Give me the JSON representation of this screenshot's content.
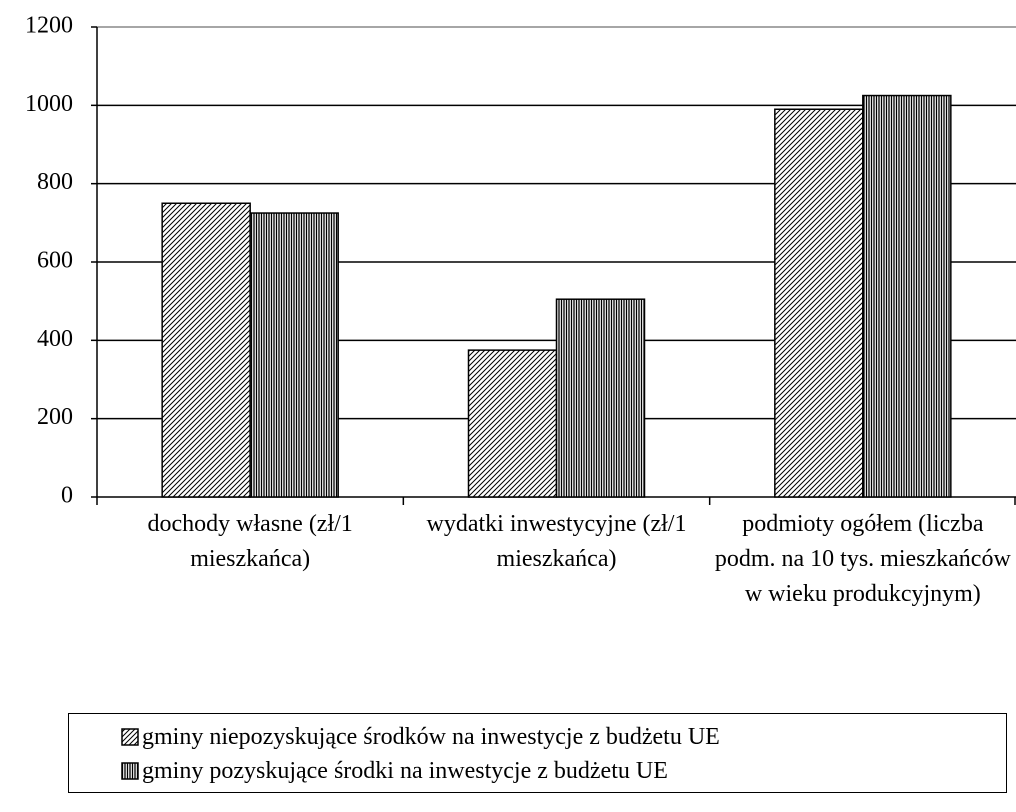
{
  "chart_data": {
    "type": "bar",
    "categories": [
      "dochody własne (zł/1 mieszkańca)",
      "wydatki inwestycyjne (zł/1 mieszkańca)",
      "podmioty ogółem (liczba podm. na 10 tys. mieszkańców w wieku produkcyjnym)"
    ],
    "series": [
      {
        "name": "gminy niepozyskujące środków na inwestycje z budżetu UE",
        "color": "#000000",
        "hatch": "diagonal",
        "values": [
          750,
          375,
          990
        ]
      },
      {
        "name": "gminy pozyskujące środki na inwestycje z budżetu UE",
        "color": "#000000",
        "hatch": "vertical",
        "values": [
          725,
          505,
          1025
        ]
      }
    ],
    "ylim": [
      0,
      1200
    ],
    "yticks": [
      0,
      200,
      400,
      600,
      800,
      1000,
      1200
    ],
    "grid": true,
    "legend": "bottom"
  }
}
